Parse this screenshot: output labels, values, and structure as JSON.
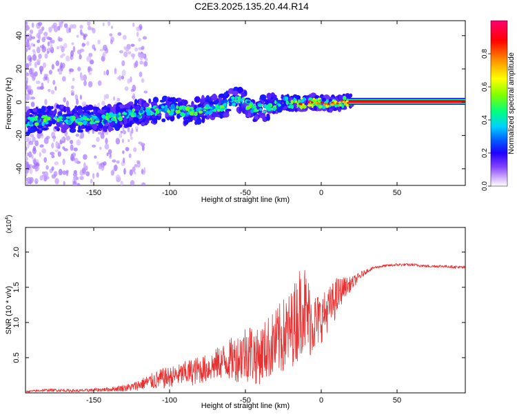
{
  "title": "C2E3.2025.135.20.44.R14",
  "chart_data": [
    {
      "type": "heatmap",
      "xlabel": "Height of straight line (km)",
      "ylabel": "Frequency (Hz)",
      "xlim": [
        -195,
        95
      ],
      "ylim": [
        -50,
        49
      ],
      "xticks": [
        -150,
        -100,
        -50,
        0,
        50
      ],
      "yticks": [
        -40,
        -20,
        0,
        20,
        40
      ],
      "colorbar": {
        "label": "Normalized spectral amplitude",
        "range": [
          0,
          1
        ],
        "ticks": [
          "0.0",
          "0.2",
          "0.4",
          "0.6",
          "0.8"
        ],
        "colors": [
          "#ffffff",
          "#c080ff",
          "#6000ff",
          "#0000ff",
          "#00c0ff",
          "#00ff80",
          "#a0ff00",
          "#ffff00",
          "#ff8000",
          "#ff0000",
          "#ff0080"
        ]
      },
      "trace": {
        "x": [
          -195,
          -185,
          -175,
          -165,
          -155,
          -145,
          -135,
          -125,
          -115,
          -105,
          -95,
          -85,
          -75,
          -65,
          -55,
          -45,
          -35,
          -25,
          -15,
          -5,
          5,
          15,
          25,
          50,
          95
        ],
        "y": [
          -12,
          -11,
          -9,
          -11,
          -10,
          -10,
          -9,
          -7,
          -6,
          -4,
          -5,
          -6,
          -4,
          -2,
          2,
          -4,
          -3,
          0,
          -1,
          0,
          -1,
          0,
          0.5,
          0.5,
          0.5
        ]
      }
    },
    {
      "type": "line",
      "xlabel": "Height of straight line (km)",
      "ylabel": "SNR (10 * v/v)",
      "y_multiplier": "(x10",
      "y_exponent": "4",
      "xlim": [
        -195,
        95
      ],
      "ylim": [
        0,
        2.35
      ],
      "xticks": [
        -150,
        -100,
        -50,
        0,
        50
      ],
      "yticks": [
        0.5,
        1.0,
        1.5,
        2.0
      ],
      "ytick_labels": [
        "0.5",
        "1.0",
        "1.5",
        "2.0"
      ],
      "series": [
        {
          "color": "#e83030",
          "x": [
            -195,
            -180,
            -160,
            -140,
            -125,
            -115,
            -105,
            -95,
            -85,
            -75,
            -65,
            -55,
            -48,
            -42,
            -35,
            -30,
            -25,
            -20,
            -15,
            -12,
            -10,
            -5,
            0,
            5,
            10,
            15,
            20,
            25,
            30,
            35,
            40,
            50,
            60,
            70,
            80,
            95
          ],
          "y": [
            0.02,
            0.04,
            0.03,
            0.05,
            0.08,
            0.15,
            0.2,
            0.25,
            0.3,
            0.35,
            0.45,
            0.5,
            0.6,
            0.5,
            0.65,
            0.7,
            0.8,
            0.9,
            1.1,
            1.3,
            1.1,
            1.0,
            1.05,
            1.2,
            1.35,
            1.5,
            1.55,
            1.65,
            1.73,
            1.78,
            1.8,
            1.82,
            1.82,
            1.8,
            1.8,
            1.78
          ],
          "noise": [
            0.01,
            0.02,
            0.02,
            0.03,
            0.06,
            0.1,
            0.15,
            0.15,
            0.2,
            0.2,
            0.25,
            0.35,
            0.45,
            0.4,
            0.45,
            0.5,
            0.55,
            0.55,
            0.65,
            0.7,
            0.65,
            0.45,
            0.35,
            0.3,
            0.3,
            0.15,
            0.1,
            0.06,
            0.03,
            0.02,
            0.02,
            0.02,
            0.02,
            0.02,
            0.02,
            0.02
          ]
        }
      ]
    }
  ]
}
